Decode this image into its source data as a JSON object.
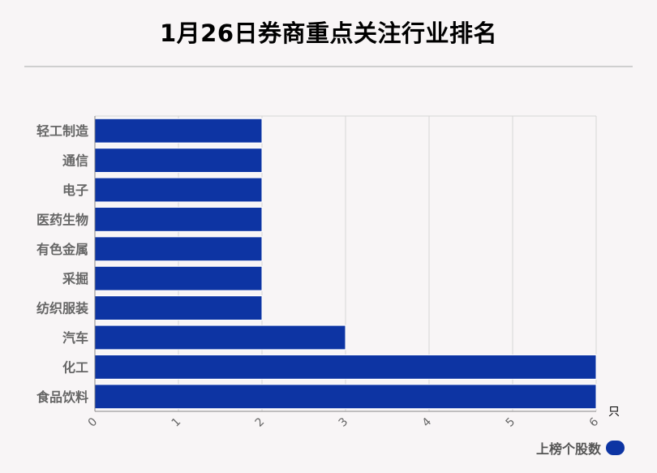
{
  "page": {
    "title": "1月26日券商重点关注行业排名"
  },
  "chart_data": {
    "type": "bar",
    "orientation": "horizontal",
    "title": "1月26日券商重点关注行业排名",
    "categories": [
      "轻工制造",
      "通信",
      "电子",
      "医药生物",
      "有色金属",
      "采掘",
      "纺织服装",
      "汽车",
      "化工",
      "食品饮料"
    ],
    "series": [
      {
        "name": "上榜个股数",
        "values": [
          2,
          2,
          2,
          2,
          2,
          2,
          2,
          3,
          6,
          6
        ],
        "color": "#0d34a3"
      }
    ],
    "xlim": [
      0,
      6
    ],
    "xticks": [
      "0",
      "1",
      "2",
      "3",
      "4",
      "5",
      "6"
    ],
    "xunit": "只",
    "grid": true,
    "legend_position": "bottom-right"
  },
  "legend": {
    "label": "上榜个股数",
    "color": "#0d34a3"
  }
}
